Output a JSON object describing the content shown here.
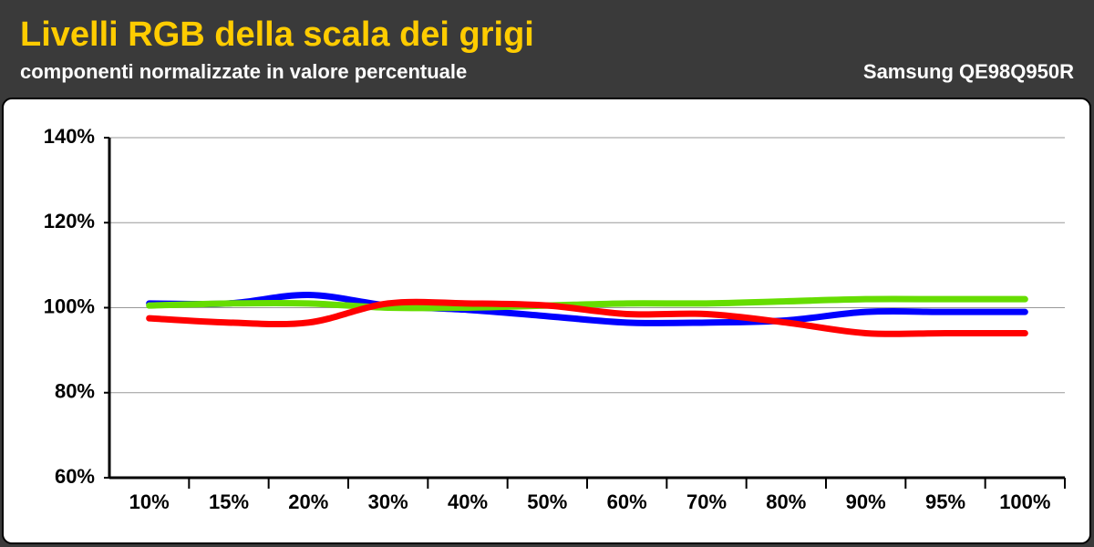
{
  "chart_data": {
    "type": "line",
    "title": "Livelli RGB della scala dei grigi",
    "subtitle": "componenti normalizzate in valore percentuale",
    "annotation": "Samsung QE98Q950R",
    "categories": [
      "10%",
      "15%",
      "20%",
      "30%",
      "40%",
      "50%",
      "60%",
      "70%",
      "80%",
      "90%",
      "95%",
      "100%"
    ],
    "series": [
      {
        "color": "#0000ff",
        "values": [
          101,
          101,
          103,
          100.5,
          99.5,
          98,
          96.5,
          96.5,
          97,
          99,
          99,
          99
        ]
      },
      {
        "color": "#66dd00",
        "values": [
          100.5,
          101,
          101,
          100,
          100,
          100.5,
          101,
          101,
          101.5,
          102,
          102,
          102
        ]
      },
      {
        "color": "#ff0000",
        "values": [
          97.5,
          96.5,
          96.5,
          101,
          101,
          100.5,
          98.5,
          98.5,
          96.5,
          94,
          94,
          94
        ]
      }
    ],
    "ylim": [
      60,
      140
    ],
    "yticks": [
      {
        "value": 60,
        "label": "60%"
      },
      {
        "value": 80,
        "label": "80%"
      },
      {
        "value": 100,
        "label": "100%"
      },
      {
        "value": 120,
        "label": "120%"
      },
      {
        "value": 140,
        "label": "140%"
      }
    ],
    "grid": true
  }
}
